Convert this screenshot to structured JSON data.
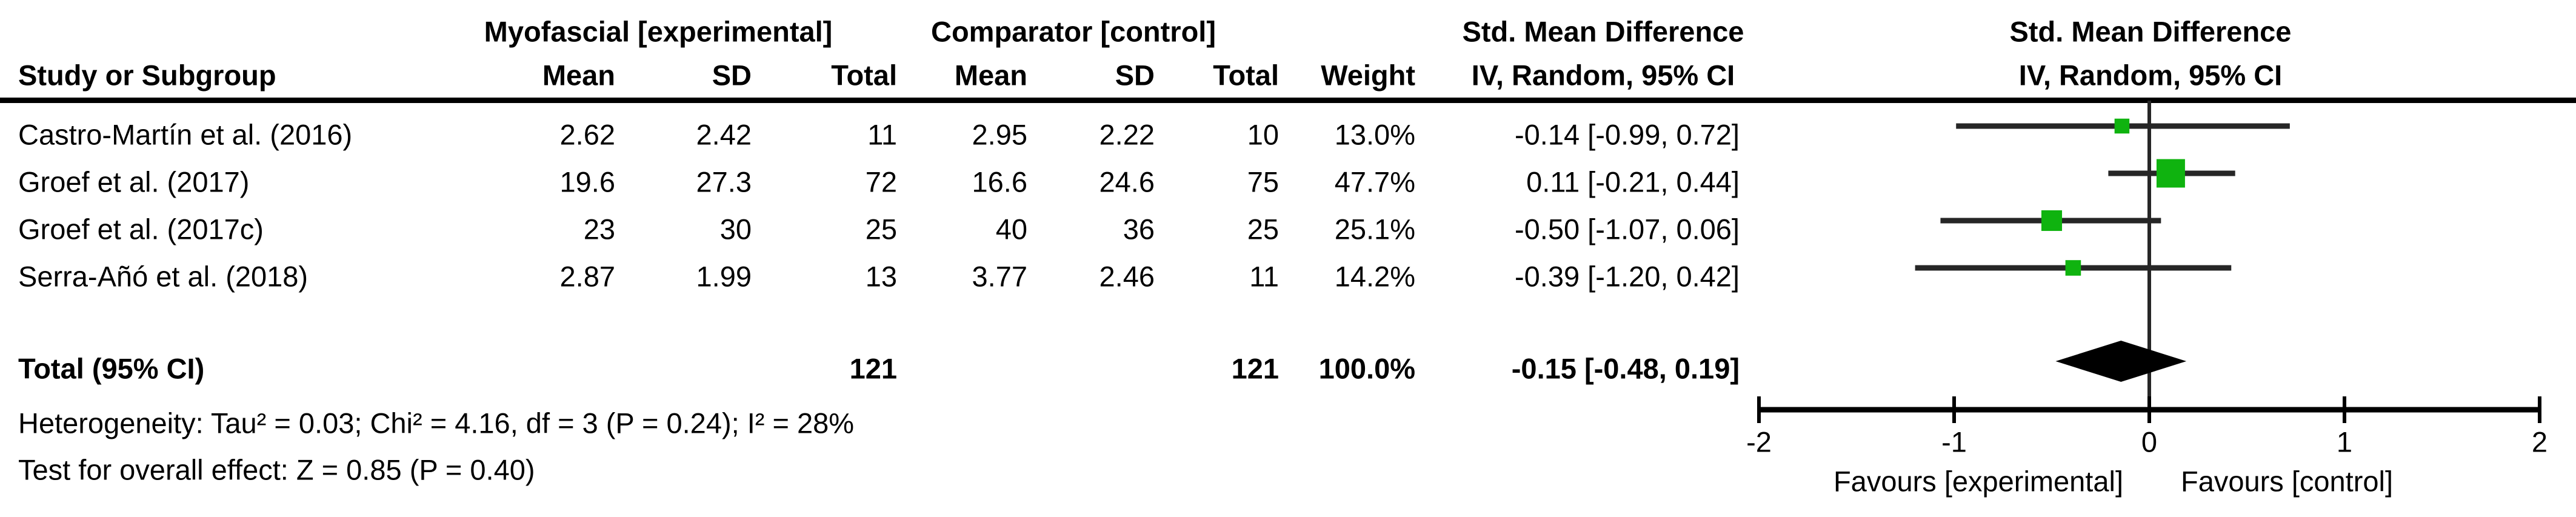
{
  "headers": {
    "exp_group": "Myofascial [experimental]",
    "ctrl_group": "Comparator [control]",
    "smd": "Std. Mean Difference",
    "method": "IV, Random, 95% CI"
  },
  "columns": {
    "study": "Study or Subgroup",
    "mean": "Mean",
    "sd": "SD",
    "total": "Total",
    "weight": "Weight"
  },
  "rows": [
    {
      "study": "Castro-Martín et al. (2016)",
      "mean_e": "2.62",
      "sd_e": "2.42",
      "total_e": "11",
      "mean_c": "2.95",
      "sd_c": "2.22",
      "total_c": "10",
      "weight": "13.0%",
      "ci_text": "-0.14 [-0.99, 0.72]"
    },
    {
      "study": "Groef et al. (2017)",
      "mean_e": "19.6",
      "sd_e": "27.3",
      "total_e": "72",
      "mean_c": "16.6",
      "sd_c": "24.6",
      "total_c": "75",
      "weight": "47.7%",
      "ci_text": "0.11 [-0.21, 0.44]"
    },
    {
      "study": "Groef et al. (2017c)",
      "mean_e": "23",
      "sd_e": "30",
      "total_e": "25",
      "mean_c": "40",
      "sd_c": "36",
      "total_c": "25",
      "weight": "25.1%",
      "ci_text": "-0.50 [-1.07, 0.06]"
    },
    {
      "study": "Serra-Añó et al. (2018)",
      "mean_e": "2.87",
      "sd_e": "1.99",
      "total_e": "13",
      "mean_c": "3.77",
      "sd_c": "2.46",
      "total_c": "11",
      "weight": "14.2%",
      "ci_text": "-0.39 [-1.20, 0.42]"
    }
  ],
  "total": {
    "label": "Total (95% CI)",
    "total_e": "121",
    "total_c": "121",
    "weight": "100.0%",
    "ci_text": "-0.15 [-0.48, 0.19]"
  },
  "footnotes": {
    "heterogeneity": "Heterogeneity: Tau² = 0.03; Chi² = 4.16, df = 3 (P = 0.24); I² = 28%",
    "overall_effect": "Test for overall effect: Z = 0.85 (P = 0.40)"
  },
  "chart_data": {
    "type": "forest",
    "title": "Std. Mean Difference",
    "subtitle": "IV, Random, 95% CI",
    "effect_measure": "Std. Mean Difference, IV, Random, 95% CI",
    "xlim": [
      -2,
      2
    ],
    "ticks": [
      -2,
      -1,
      0,
      1,
      2
    ],
    "favours": [
      "Favours [experimental]",
      "Favours [control]"
    ],
    "studies": [
      {
        "name": "Castro-Martín et al. (2016)",
        "smd": -0.14,
        "ci_low": -0.99,
        "ci_high": 0.72,
        "weight": 13.0
      },
      {
        "name": "Groef et al. (2017)",
        "smd": 0.11,
        "ci_low": -0.21,
        "ci_high": 0.44,
        "weight": 47.7
      },
      {
        "name": "Groef et al. (2017c)",
        "smd": -0.5,
        "ci_low": -1.07,
        "ci_high": 0.06,
        "weight": 25.1
      },
      {
        "name": "Serra-Añó et al. (2018)",
        "smd": -0.39,
        "ci_low": -1.2,
        "ci_high": 0.42,
        "weight": 14.2
      }
    ],
    "total": {
      "smd": -0.15,
      "ci_low": -0.48,
      "ci_high": 0.19,
      "weight": 100.0
    },
    "marker_color": "#0fb30f",
    "line_color": "#262626",
    "diamond_color": "#000000"
  }
}
